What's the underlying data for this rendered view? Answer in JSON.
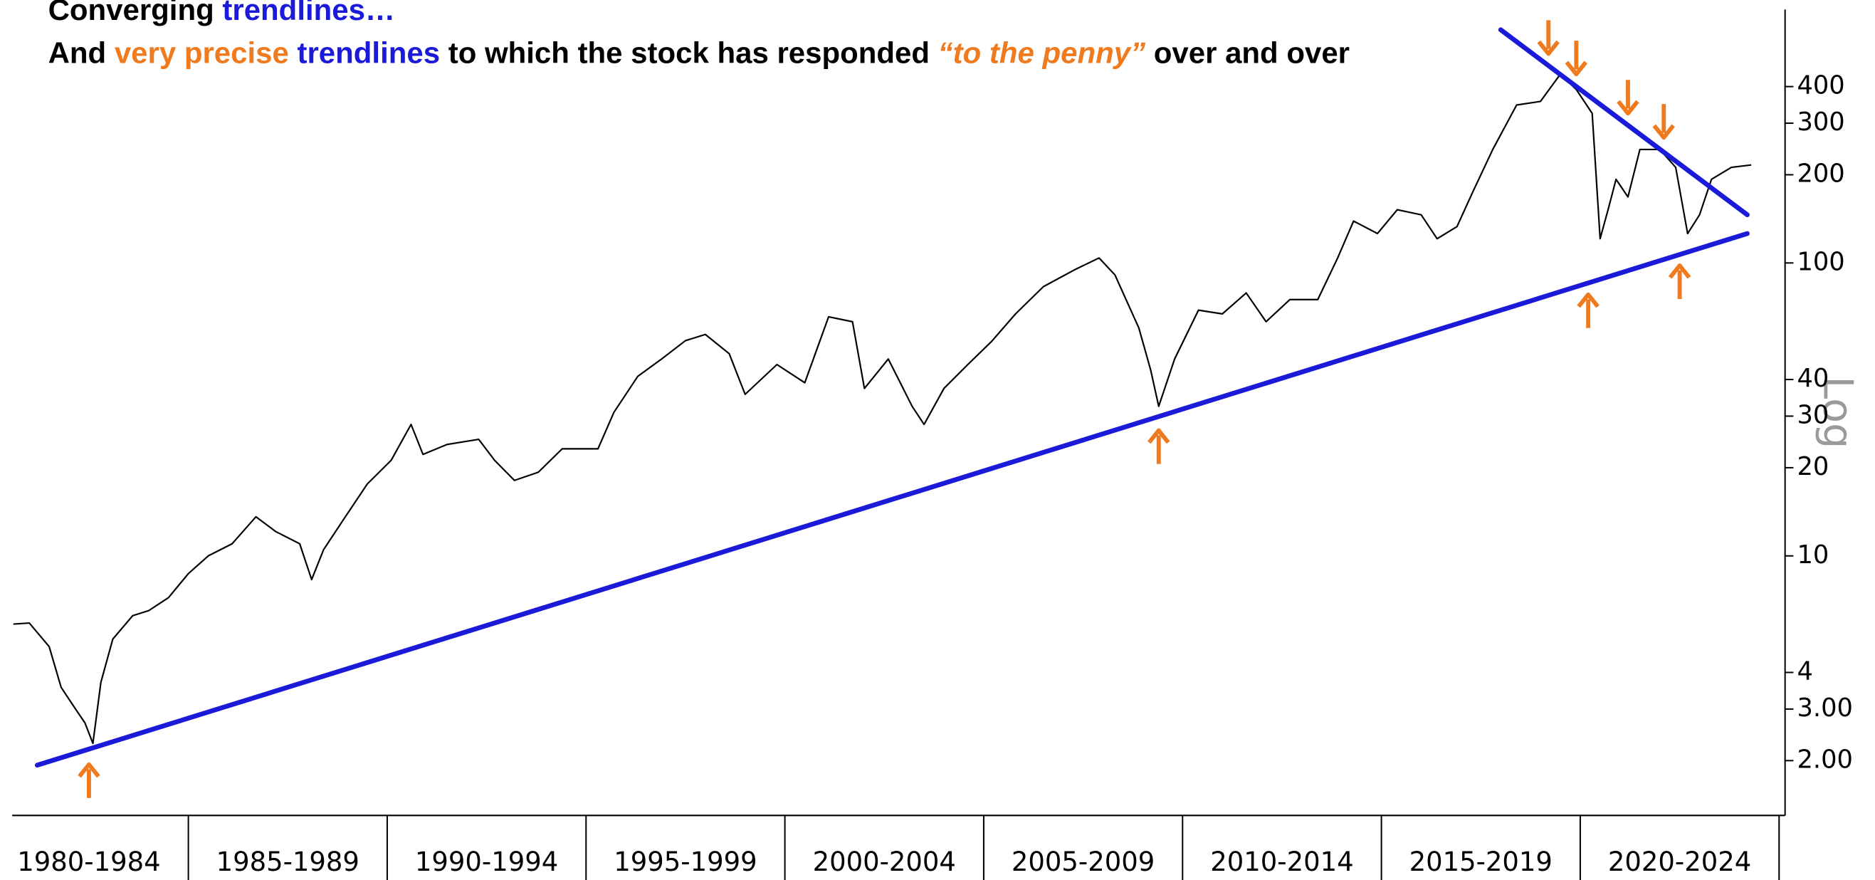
{
  "chart_data": {
    "type": "line",
    "title_lines": [
      [
        {
          "text": "Converging ",
          "color": "#000000"
        },
        {
          "text": "trendlines…",
          "color": "#1a1ad8"
        }
      ],
      [
        {
          "text": "And ",
          "color": "#000000"
        },
        {
          "text": "very precise ",
          "color": "#f07a1e"
        },
        {
          "text": "trendlines ",
          "color": "#1a1ad8"
        },
        {
          "text": "to which the stock has responded ",
          "color": "#000000"
        },
        {
          "text": "“to the penny”",
          "color": "#f07a1e",
          "italic": true
        },
        {
          "text": " over and over",
          "color": "#000000"
        }
      ]
    ],
    "scale_label": "Log",
    "log_scale": true,
    "color": "#000000",
    "x": [
      1980.6,
      1981.0,
      1981.5,
      1981.8,
      1982.1,
      1982.4,
      1982.6,
      1982.8,
      1983.1,
      1983.6,
      1984.0,
      1984.5,
      1985.0,
      1985.5,
      1986.1,
      1986.7,
      1987.2,
      1987.8,
      1988.1,
      1988.4,
      1988.9,
      1989.5,
      1990.1,
      1990.6,
      1990.9,
      1991.5,
      1992.3,
      1992.7,
      1993.2,
      1993.8,
      1994.4,
      1995.3,
      1995.7,
      1996.3,
      1996.9,
      1997.5,
      1998.0,
      1998.6,
      1999.0,
      1999.8,
      2000.5,
      2001.1,
      2001.7,
      2002.0,
      2002.6,
      2003.2,
      2003.5,
      2004.0,
      2004.6,
      2005.2,
      2005.8,
      2006.5,
      2007.3,
      2007.9,
      2008.3,
      2008.9,
      2009.2,
      2009.4,
      2009.8,
      2010.4,
      2011.0,
      2011.6,
      2012.1,
      2012.7,
      2013.4,
      2013.9,
      2014.3,
      2014.9,
      2015.4,
      2016.0,
      2016.4,
      2016.9,
      2017.3,
      2017.8,
      2018.4,
      2019.0,
      2019.5,
      2019.9,
      2020.3,
      2020.5,
      2020.7,
      2020.9,
      2021.2,
      2021.5,
      2022.0,
      2022.4,
      2022.7,
      2023.0,
      2023.3,
      2023.8,
      2024.3
    ],
    "values": [
      5.85,
      5.9,
      4.9,
      3.56,
      3.09,
      2.69,
      2.29,
      3.7,
      5.2,
      6.25,
      6.5,
      7.2,
      8.7,
      10,
      11,
      13.6,
      12.1,
      11,
      8.3,
      10.5,
      13.3,
      17.6,
      21.2,
      28.1,
      22.2,
      24,
      25,
      21.2,
      18.1,
      19.3,
      23.2,
      23.2,
      30.9,
      41,
      47,
      54.3,
      57,
      49,
      35.6,
      45,
      39,
      65.5,
      63,
      37.3,
      47,
      32.4,
      28.1,
      37.3,
      45,
      54,
      67,
      83,
      95,
      104,
      91,
      60,
      43,
      32.4,
      47,
      69,
      67,
      79,
      63,
      75,
      75,
      104,
      139,
      126,
      152,
      146,
      121,
      133,
      175,
      244,
      346,
      356,
      441,
      391,
      324,
      121,
      152,
      193,
      168,
      244,
      244,
      212,
      126,
      146,
      193,
      212,
      216
    ],
    "trendlines": [
      {
        "x": [
          1981.2,
          2024.2
        ],
        "y": [
          1.93,
          126
        ]
      },
      {
        "x": [
          2018.0,
          2024.2
        ],
        "y": [
          625,
          146
        ]
      }
    ],
    "trendline_color": "#1a1ad8",
    "arrows": [
      {
        "x": 1982.5,
        "y": 1.94,
        "dir": "up"
      },
      {
        "x": 2009.4,
        "y": 26.8,
        "dir": "up"
      },
      {
        "x": 2020.2,
        "y": 78,
        "dir": "up"
      },
      {
        "x": 2022.5,
        "y": 98,
        "dir": "up"
      },
      {
        "x": 2019.2,
        "y": 518,
        "dir": "down"
      },
      {
        "x": 2019.9,
        "y": 441,
        "dir": "down"
      },
      {
        "x": 2021.2,
        "y": 324,
        "dir": "down"
      },
      {
        "x": 2022.1,
        "y": 268,
        "dir": "down"
      }
    ],
    "arrow_color": "#f07a1e",
    "categories": [
      "1980-1984",
      "1985-1989",
      "1990-1994",
      "1995-1999",
      "2000-2004",
      "2005-2009",
      "2010-2014",
      "2015-2019",
      "2020-2024"
    ],
    "category_starts": [
      1980,
      1985,
      1990,
      1995,
      2000,
      2005,
      2010,
      2015,
      2020
    ],
    "xlim": [
      1980,
      2025
    ],
    "xticks": [
      1985,
      1990,
      1995,
      2000,
      2005,
      2010,
      2015,
      2020,
      2025
    ],
    "ylim": [
      1.3,
      790
    ],
    "yticks": [
      {
        "value": 2,
        "label": "2.00"
      },
      {
        "value": 3,
        "label": "3.00"
      },
      4,
      10,
      20,
      30,
      40,
      100,
      200,
      300,
      400
    ]
  }
}
